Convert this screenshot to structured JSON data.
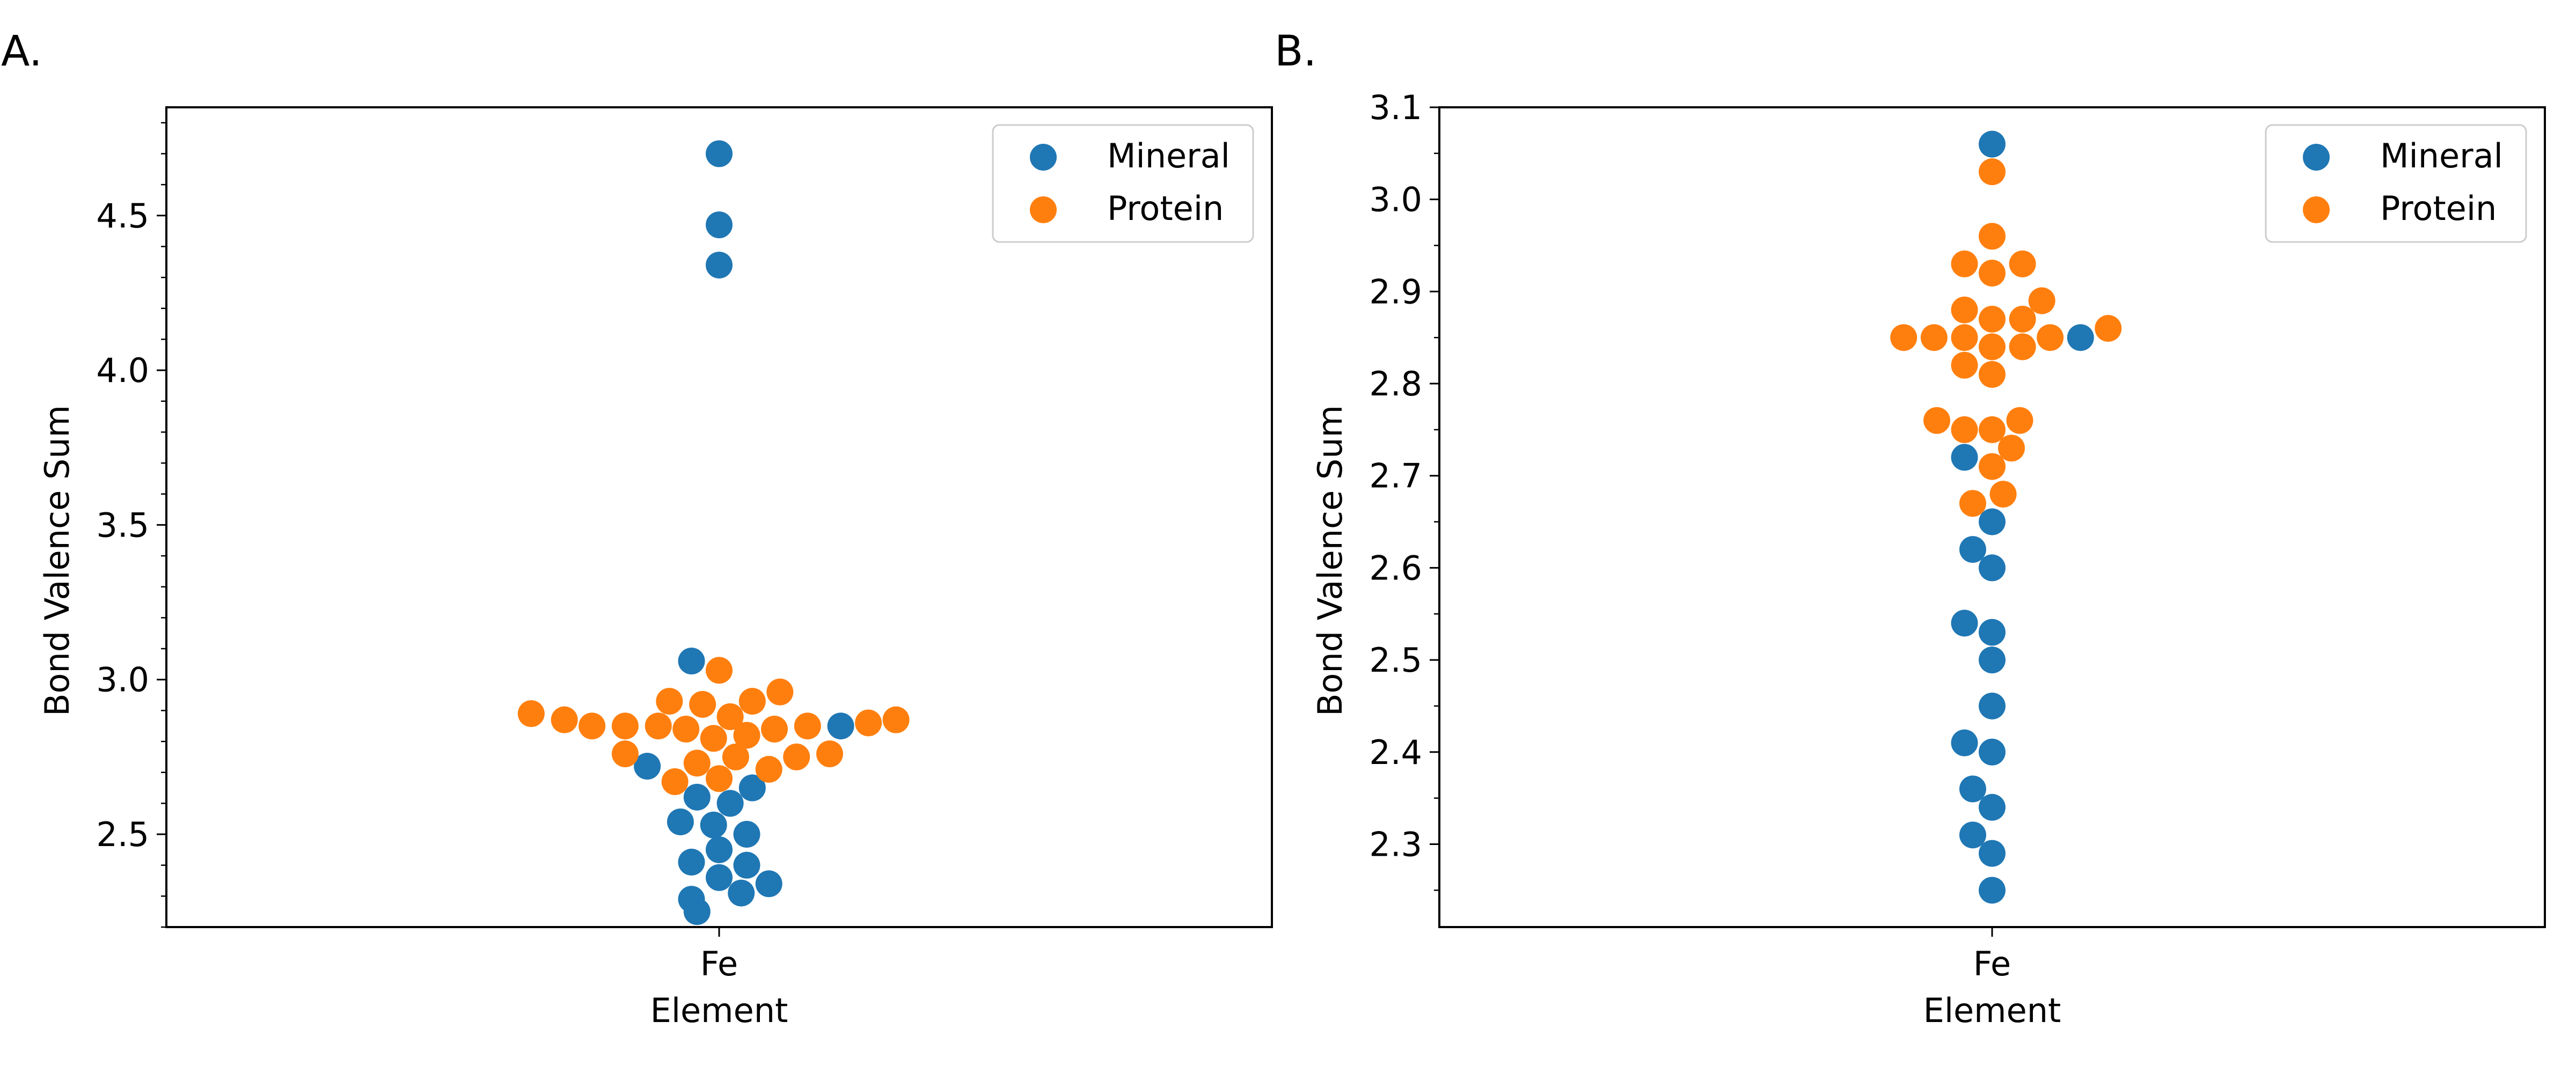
{
  "chart_data": [
    {
      "type": "scatter",
      "panel_label": "A.",
      "xlabel": "Element",
      "ylabel": "Bond Valence Sum",
      "categories": [
        "Fe"
      ],
      "ylim": [
        2.2,
        4.85
      ],
      "yticks": [
        "2.5",
        "3.0",
        "3.5",
        "4.0",
        "4.5"
      ],
      "legend_position": "top-right",
      "series": [
        {
          "name": "Mineral",
          "color": "#1f77b4",
          "points": [
            {
              "x": -0.04,
              "y": 2.25
            },
            {
              "x": -0.05,
              "y": 2.29
            },
            {
              "x": 0.04,
              "y": 2.31
            },
            {
              "x": 0.09,
              "y": 2.34
            },
            {
              "x": 0.0,
              "y": 2.36
            },
            {
              "x": 0.05,
              "y": 2.4
            },
            {
              "x": -0.05,
              "y": 2.41
            },
            {
              "x": 0.0,
              "y": 2.45
            },
            {
              "x": 0.05,
              "y": 2.5
            },
            {
              "x": -0.01,
              "y": 2.53
            },
            {
              "x": -0.07,
              "y": 2.54
            },
            {
              "x": 0.02,
              "y": 2.6
            },
            {
              "x": -0.04,
              "y": 2.62
            },
            {
              "x": 0.06,
              "y": 2.65
            },
            {
              "x": -0.13,
              "y": 2.72
            },
            {
              "x": 0.22,
              "y": 2.85
            },
            {
              "x": -0.05,
              "y": 3.06
            },
            {
              "x": 0.0,
              "y": 4.34
            },
            {
              "x": 0.0,
              "y": 4.47
            },
            {
              "x": 0.0,
              "y": 4.7
            }
          ]
        },
        {
          "name": "Protein",
          "color": "#ff7f0e",
          "points": [
            {
              "x": 0.0,
              "y": 2.68
            },
            {
              "x": -0.08,
              "y": 2.67
            },
            {
              "x": 0.09,
              "y": 2.71
            },
            {
              "x": 0.03,
              "y": 2.75
            },
            {
              "x": -0.04,
              "y": 2.73
            },
            {
              "x": 0.14,
              "y": 2.75
            },
            {
              "x": 0.2,
              "y": 2.76
            },
            {
              "x": -0.17,
              "y": 2.76
            },
            {
              "x": -0.01,
              "y": 2.81
            },
            {
              "x": 0.05,
              "y": 2.82
            },
            {
              "x": -0.06,
              "y": 2.84
            },
            {
              "x": 0.1,
              "y": 2.84
            },
            {
              "x": 0.16,
              "y": 2.85
            },
            {
              "x": -0.11,
              "y": 2.85
            },
            {
              "x": -0.17,
              "y": 2.85
            },
            {
              "x": -0.23,
              "y": 2.85
            },
            {
              "x": 0.27,
              "y": 2.86
            },
            {
              "x": -0.28,
              "y": 2.87
            },
            {
              "x": 0.32,
              "y": 2.87
            },
            {
              "x": -0.34,
              "y": 2.89
            },
            {
              "x": 0.02,
              "y": 2.88
            },
            {
              "x": -0.03,
              "y": 2.92
            },
            {
              "x": -0.09,
              "y": 2.93
            },
            {
              "x": 0.06,
              "y": 2.93
            },
            {
              "x": 0.11,
              "y": 2.96
            },
            {
              "x": 0.0,
              "y": 3.03
            }
          ]
        }
      ]
    },
    {
      "type": "scatter",
      "panel_label": "B.",
      "xlabel": "Element",
      "ylabel": "Bond Valence Sum",
      "categories": [
        "Fe"
      ],
      "ylim": [
        2.21,
        3.1
      ],
      "yticks": [
        "2.3",
        "2.4",
        "2.5",
        "2.6",
        "2.7",
        "2.8",
        "2.9",
        "3.0",
        "3.1"
      ],
      "legend_position": "top-right",
      "series": [
        {
          "name": "Mineral",
          "color": "#1f77b4",
          "points": [
            {
              "x": 0.0,
              "y": 2.25
            },
            {
              "x": 0.0,
              "y": 2.29
            },
            {
              "x": -0.035,
              "y": 2.31
            },
            {
              "x": 0.0,
              "y": 2.34
            },
            {
              "x": -0.035,
              "y": 2.36
            },
            {
              "x": 0.0,
              "y": 2.4
            },
            {
              "x": -0.05,
              "y": 2.41
            },
            {
              "x": 0.0,
              "y": 2.45
            },
            {
              "x": 0.0,
              "y": 2.5
            },
            {
              "x": 0.0,
              "y": 2.53
            },
            {
              "x": -0.05,
              "y": 2.54
            },
            {
              "x": 0.0,
              "y": 2.6
            },
            {
              "x": -0.035,
              "y": 2.62
            },
            {
              "x": 0.0,
              "y": 2.65
            },
            {
              "x": -0.05,
              "y": 2.72
            },
            {
              "x": 0.16,
              "y": 2.85
            },
            {
              "x": 0.0,
              "y": 3.06
            }
          ]
        },
        {
          "name": "Protein",
          "color": "#ff7f0e",
          "points": [
            {
              "x": -0.035,
              "y": 2.67
            },
            {
              "x": 0.02,
              "y": 2.68
            },
            {
              "x": 0.0,
              "y": 2.71
            },
            {
              "x": 0.035,
              "y": 2.73
            },
            {
              "x": -0.05,
              "y": 2.75
            },
            {
              "x": 0.0,
              "y": 2.75
            },
            {
              "x": -0.1,
              "y": 2.76
            },
            {
              "x": 0.05,
              "y": 2.76
            },
            {
              "x": 0.0,
              "y": 2.81
            },
            {
              "x": -0.05,
              "y": 2.82
            },
            {
              "x": 0.0,
              "y": 2.84
            },
            {
              "x": 0.055,
              "y": 2.84
            },
            {
              "x": -0.16,
              "y": 2.85
            },
            {
              "x": -0.105,
              "y": 2.85
            },
            {
              "x": -0.05,
              "y": 2.85
            },
            {
              "x": 0.105,
              "y": 2.85
            },
            {
              "x": 0.21,
              "y": 2.86
            },
            {
              "x": 0.0,
              "y": 2.87
            },
            {
              "x": 0.055,
              "y": 2.87
            },
            {
              "x": -0.05,
              "y": 2.88
            },
            {
              "x": 0.09,
              "y": 2.89
            },
            {
              "x": 0.0,
              "y": 2.92
            },
            {
              "x": -0.05,
              "y": 2.93
            },
            {
              "x": 0.055,
              "y": 2.93
            },
            {
              "x": 0.0,
              "y": 2.96
            },
            {
              "x": 0.0,
              "y": 3.03
            }
          ]
        }
      ]
    }
  ]
}
